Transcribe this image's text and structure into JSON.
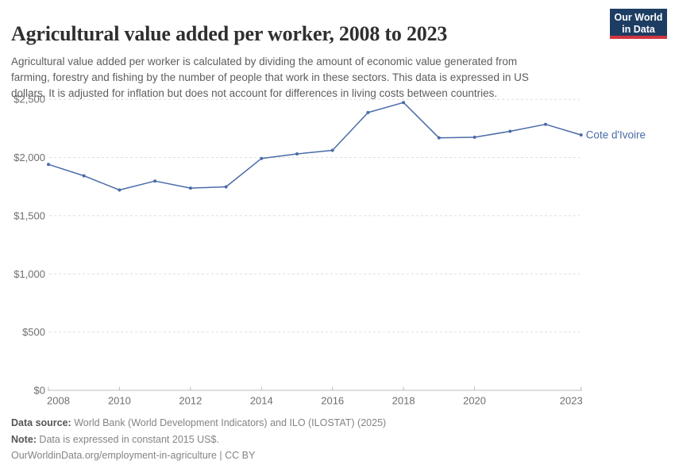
{
  "header": {
    "title": "Agricultural value added per worker, 2008 to 2023",
    "subtitle_lines": [
      "Agricultural value added per worker is calculated by dividing the amount of economic value generated from",
      "farming, forestry and fishing by the number of people that work in these sectors. This data is expressed in US",
      "dollars. It is adjusted for inflation but does not account for differences in living costs between countries."
    ]
  },
  "branding": {
    "logo_line1": "Our World",
    "logo_line2": "in Data",
    "logo_bg": "#1d3d63",
    "logo_accent": "#cf3540"
  },
  "chart_data": {
    "type": "line",
    "title": "Agricultural value added per worker, 2008 to 2023",
    "x": [
      2008,
      2009,
      2010,
      2011,
      2012,
      2013,
      2014,
      2015,
      2016,
      2017,
      2018,
      2019,
      2020,
      2021,
      2022,
      2023
    ],
    "series": [
      {
        "name": "Cote d'Ivoire",
        "color": "#4a6ba8",
        "values": [
          1941,
          1843,
          1721,
          1798,
          1737,
          1748,
          1992,
          2031,
          2062,
          2386,
          2473,
          2169,
          2174,
          2225,
          2285,
          2194
        ]
      }
    ],
    "ylim": [
      0,
      2500
    ],
    "yticks": [
      {
        "value": 0,
        "label": "$0"
      },
      {
        "value": 500,
        "label": "$500"
      },
      {
        "value": 1000,
        "label": "$1,000"
      },
      {
        "value": 1500,
        "label": "$1,500"
      },
      {
        "value": 2000,
        "label": "$2,000"
      },
      {
        "value": 2500,
        "label": "$2,500"
      }
    ],
    "xticks": [
      2008,
      2010,
      2012,
      2014,
      2016,
      2018,
      2020,
      2023
    ],
    "grid": "horizontal-dashed",
    "legend_position": "end-of-line-label"
  },
  "footer": {
    "data_source_label": "Data source:",
    "data_source_text": " World Bank (World Development Indicators) and ILO (ILOSTAT) (2025)",
    "note_label": "Note:",
    "note_text": " Data is expressed in constant 2015 US$.",
    "link_text": "OurWorldinData.org/employment-in-agriculture | CC BY"
  }
}
